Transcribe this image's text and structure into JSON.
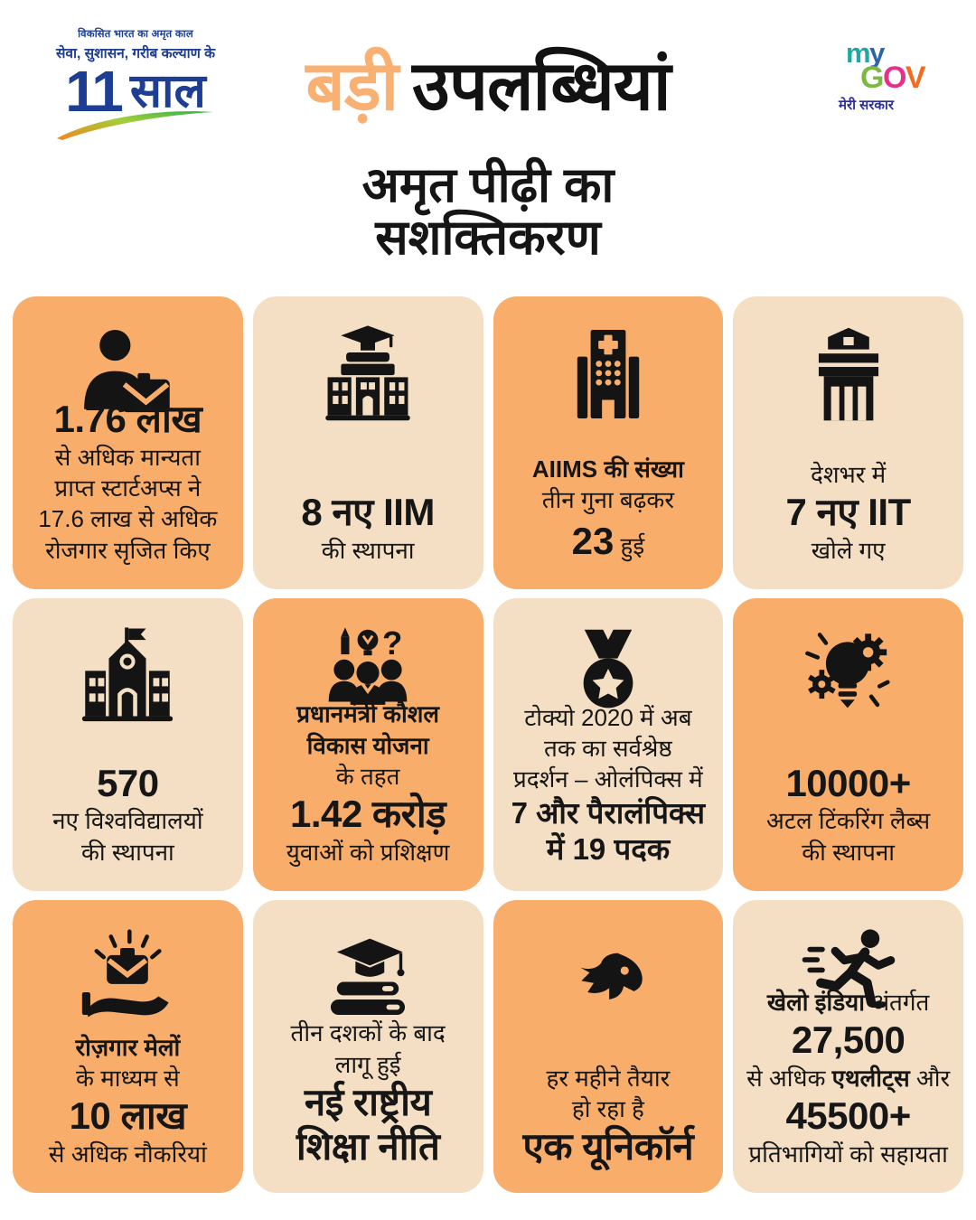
{
  "colors": {
    "card_orange": "#F9AD6A",
    "card_cream": "#F4DFC4",
    "title_accent": "#F8B173",
    "logo_blue": "#1D3E94",
    "mygov_sub": "#2E3192",
    "swoosh": [
      "#F5821F",
      "#A4CE39",
      "#2BB24C"
    ]
  },
  "header": {
    "logo": {
      "tagline_small": "विकसित भारत का अमृत काल",
      "tagline_bold": "सेवा, सुशासन, गरीब कल्याण के",
      "years_number": "11",
      "years_word": "साल"
    },
    "mygov": {
      "my": [
        {
          "ch": "m",
          "color": "#1FA8A0"
        },
        {
          "ch": "y",
          "color": "#2C63AC"
        }
      ],
      "gov": [
        {
          "ch": "G",
          "color": "#7CB942"
        },
        {
          "ch": "O",
          "color": "#E8308A"
        },
        {
          "ch": "V",
          "color": "#F26B21"
        }
      ],
      "subtitle": "मेरी सरकार"
    }
  },
  "title": {
    "accent": "बड़ी",
    "rest": "उपलब्धियां"
  },
  "subtitle": {
    "line1": "अमृत पीढ़ी का",
    "line2": "सशक्तिकरण"
  },
  "cards": [
    {
      "id": "startups",
      "tone": "orange",
      "icon": "person-briefcase",
      "lines": [
        {
          "s": "xl",
          "segments": [
            {
              "t": "1.76 लाख",
              "b": true
            }
          ]
        },
        {
          "s": "md",
          "segments": [
            {
              "t": "से अधिक मान्यता"
            }
          ]
        },
        {
          "s": "md",
          "segments": [
            {
              "t": "प्राप्त स्टार्टअप्स ने"
            }
          ]
        },
        {
          "s": "md",
          "segments": [
            {
              "t": "17.6 लाख से अधिक"
            }
          ]
        },
        {
          "s": "md",
          "segments": [
            {
              "t": "रोजगार सृजित किए"
            }
          ]
        }
      ]
    },
    {
      "id": "iim",
      "tone": "cream",
      "icon": "university",
      "lines": [
        {
          "s": "xl",
          "segments": [
            {
              "t": "8 नए IIM",
              "b": true
            }
          ]
        },
        {
          "s": "md",
          "segments": [
            {
              "t": "की स्थापना"
            }
          ]
        }
      ]
    },
    {
      "id": "aiims",
      "tone": "orange",
      "icon": "hospital",
      "lines": [
        {
          "s": "md",
          "segments": [
            {
              "t": "AIIMS की संख्या",
              "b": true
            }
          ]
        },
        {
          "s": "md",
          "segments": [
            {
              "t": "तीन गुना बढ़कर"
            }
          ]
        },
        {
          "s": "md",
          "segments": [
            {
              "t": "23",
              "b": true,
              "big": true
            },
            {
              "t": " हुई"
            }
          ]
        }
      ]
    },
    {
      "id": "iit",
      "tone": "cream",
      "icon": "institute",
      "lines": [
        {
          "s": "md",
          "segments": [
            {
              "t": "देशभर में"
            }
          ]
        },
        {
          "s": "xl",
          "segments": [
            {
              "t": "7 नए IIT",
              "b": true
            }
          ]
        },
        {
          "s": "md",
          "segments": [
            {
              "t": "खोले गए"
            }
          ]
        }
      ]
    },
    {
      "id": "universities",
      "tone": "cream",
      "icon": "school",
      "lines": [
        {
          "s": "xl",
          "segments": [
            {
              "t": "570",
              "b": true
            }
          ]
        },
        {
          "s": "md",
          "segments": [
            {
              "t": "नए विश्वविद्यालयों"
            }
          ]
        },
        {
          "s": "md",
          "segments": [
            {
              "t": "की स्थापना"
            }
          ]
        }
      ]
    },
    {
      "id": "pmkvy",
      "tone": "orange",
      "icon": "skill-training",
      "lines": [
        {
          "s": "md",
          "segments": [
            {
              "t": "प्रधानमंत्री कौशल",
              "b": true
            }
          ]
        },
        {
          "s": "md",
          "segments": [
            {
              "t": "विकास योजना",
              "b": true
            }
          ]
        },
        {
          "s": "md",
          "segments": [
            {
              "t": "के तहत"
            }
          ]
        },
        {
          "s": "xl",
          "segments": [
            {
              "t": "1.42 करोड़",
              "b": true
            }
          ]
        },
        {
          "s": "md",
          "segments": [
            {
              "t": "युवाओं को प्रशिक्षण"
            }
          ]
        }
      ]
    },
    {
      "id": "olympics",
      "tone": "cream",
      "icon": "medal",
      "lines": [
        {
          "s": "md",
          "segments": [
            {
              "t": "टोक्यो 2020 में अब"
            }
          ]
        },
        {
          "s": "md",
          "segments": [
            {
              "t": "तक का सर्वश्रेष्ठ"
            }
          ]
        },
        {
          "s": "md",
          "segments": [
            {
              "t": "प्रदर्शन – ओलंपिक्स में"
            }
          ]
        },
        {
          "s": "lg",
          "segments": [
            {
              "t": "7 और पैरालंपिक्स",
              "b": true
            }
          ]
        },
        {
          "s": "lg",
          "segments": [
            {
              "t": "में 19 पदक",
              "b": true
            }
          ]
        }
      ]
    },
    {
      "id": "atal-labs",
      "tone": "orange",
      "icon": "innovation",
      "lines": [
        {
          "s": "xl",
          "segments": [
            {
              "t": "10000+",
              "b": true
            }
          ]
        },
        {
          "s": "md",
          "segments": [
            {
              "t": "अटल टिंकरिंग लैब्स"
            }
          ]
        },
        {
          "s": "md",
          "segments": [
            {
              "t": "की स्थापना"
            }
          ]
        }
      ]
    },
    {
      "id": "rozgar-mela",
      "tone": "orange",
      "icon": "job-hand",
      "lines": [
        {
          "s": "md",
          "segments": [
            {
              "t": "रोज़गार मेलों",
              "b": true
            }
          ]
        },
        {
          "s": "md",
          "segments": [
            {
              "t": "के माध्यम से"
            }
          ]
        },
        {
          "s": "xl",
          "segments": [
            {
              "t": "10 लाख",
              "b": true
            }
          ]
        },
        {
          "s": "md",
          "segments": [
            {
              "t": "से अधिक नौकरियां"
            }
          ]
        }
      ]
    },
    {
      "id": "nep",
      "tone": "cream",
      "icon": "education-books",
      "lines": [
        {
          "s": "md",
          "segments": [
            {
              "t": "तीन दशकों के बाद"
            }
          ]
        },
        {
          "s": "md",
          "segments": [
            {
              "t": "लागू हुई"
            }
          ]
        },
        {
          "s": "xl",
          "segments": [
            {
              "t": "नई राष्ट्रीय",
              "b": true
            }
          ]
        },
        {
          "s": "xl",
          "segments": [
            {
              "t": "शिक्षा नीति",
              "b": true
            }
          ]
        }
      ]
    },
    {
      "id": "unicorn",
      "tone": "orange",
      "icon": "unicorn",
      "lines": [
        {
          "s": "md",
          "segments": [
            {
              "t": "हर महीने तैयार"
            }
          ]
        },
        {
          "s": "md",
          "segments": [
            {
              "t": "हो रहा है"
            }
          ]
        },
        {
          "s": "xl",
          "segments": [
            {
              "t": "एक यूनिकॉर्न",
              "b": true
            }
          ]
        }
      ]
    },
    {
      "id": "khelo-india",
      "tone": "cream",
      "icon": "athlete",
      "lines": [
        {
          "s": "md",
          "segments": [
            {
              "t": "खेलो इंडिया",
              "b": true
            },
            {
              "t": " अंतर्गत"
            }
          ]
        },
        {
          "s": "xl",
          "segments": [
            {
              "t": "27,500",
              "b": true
            }
          ]
        },
        {
          "s": "md",
          "segments": [
            {
              "t": "से अधिक "
            },
            {
              "t": "एथलीट्स",
              "b": true
            },
            {
              "t": " और"
            }
          ]
        },
        {
          "s": "xl",
          "segments": [
            {
              "t": "45500+",
              "b": true
            }
          ]
        },
        {
          "s": "md",
          "segments": [
            {
              "t": "प्रतिभागियों को सहायता"
            }
          ]
        }
      ]
    }
  ]
}
